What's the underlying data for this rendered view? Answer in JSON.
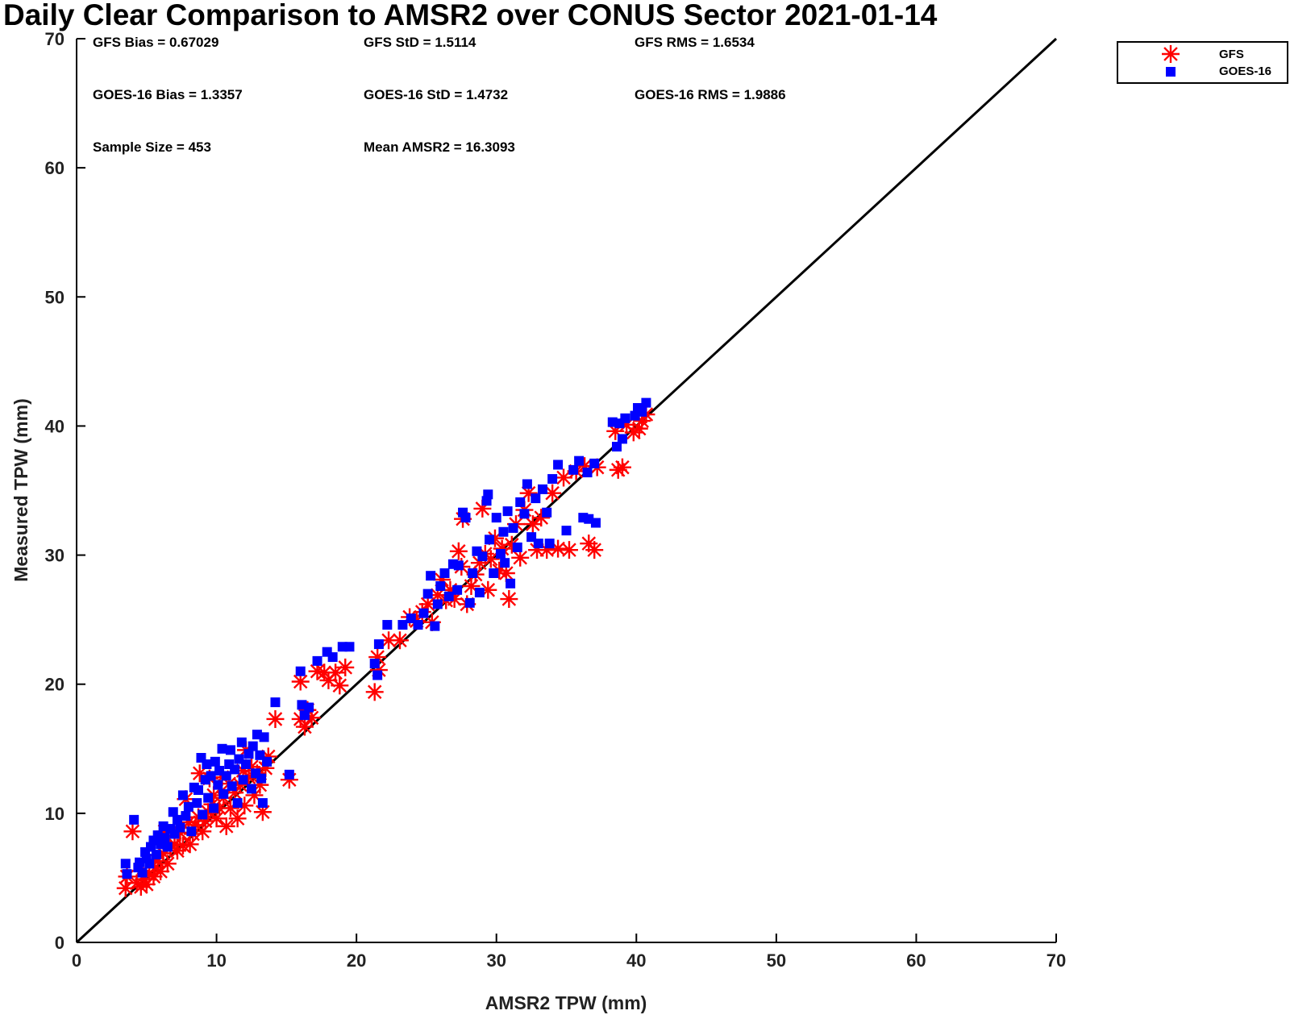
{
  "chart_data": {
    "type": "scatter",
    "title": "Daily Clear Comparison to AMSR2 over CONUS Sector 2021-01-14",
    "xlabel": "AMSR2 TPW (mm)",
    "ylabel": "Measured TPW (mm)",
    "xlim": [
      0,
      70
    ],
    "ylim": [
      0,
      70
    ],
    "xticks": [
      0,
      10,
      20,
      30,
      40,
      50,
      60,
      70
    ],
    "yticks": [
      0,
      10,
      20,
      30,
      40,
      50,
      60,
      70
    ],
    "grid": false,
    "legend_position": "outside-top-right",
    "reference_line": {
      "name": "1:1",
      "color": "#000000",
      "from": [
        0,
        0
      ],
      "to": [
        70,
        70
      ]
    },
    "stats": [
      [
        "GFS Bias = 0.67029",
        "GFS StD = 1.5114",
        "GFS RMS = 1.6534"
      ],
      [
        "GOES-16 Bias = 1.3357",
        "GOES-16 StD = 1.4732",
        "GOES-16 RMS = 1.9886"
      ],
      [
        "Sample Size = 453",
        "Mean AMSR2 = 16.3093"
      ]
    ],
    "series": [
      {
        "name": "GFS",
        "marker": "asterisk",
        "color": "#ff0000",
        "points": [
          [
            3.5,
            4.2
          ],
          [
            3.6,
            5.1
          ],
          [
            4,
            8.6
          ],
          [
            4.3,
            4.6
          ],
          [
            4.6,
            4.3
          ],
          [
            4.8,
            4.9
          ],
          [
            5,
            4.5
          ],
          [
            5.2,
            5.3
          ],
          [
            5.5,
            5.1
          ],
          [
            5.6,
            5.8
          ],
          [
            5.8,
            6.3
          ],
          [
            6,
            5.5
          ],
          [
            6.2,
            6.9
          ],
          [
            6.3,
            8.6
          ],
          [
            6.5,
            6.1
          ],
          [
            6.7,
            7.3
          ],
          [
            7,
            7.6
          ],
          [
            7.2,
            7.1
          ],
          [
            7.4,
            8.5
          ],
          [
            7.6,
            7.5
          ],
          [
            7.8,
            11.1
          ],
          [
            8,
            9.3
          ],
          [
            8.1,
            7.6
          ],
          [
            8.3,
            8.4
          ],
          [
            8.5,
            9.1
          ],
          [
            8.7,
            9.7
          ],
          [
            8.8,
            13.1
          ],
          [
            9,
            8.6
          ],
          [
            9.2,
            9.4
          ],
          [
            9.4,
            10.1
          ],
          [
            9.5,
            12.7
          ],
          [
            9.7,
            10.7
          ],
          [
            9.8,
            11.4
          ],
          [
            10,
            9.6
          ],
          [
            10.2,
            10.4
          ],
          [
            10.4,
            12.8
          ],
          [
            10.5,
            11.2
          ],
          [
            10.7,
            9
          ],
          [
            10.9,
            12.3
          ],
          [
            11,
            10.4
          ],
          [
            11.3,
            11.6
          ],
          [
            11.5,
            9.6
          ],
          [
            11.7,
            12.2
          ],
          [
            11.9,
            13.3
          ],
          [
            12,
            10.6
          ],
          [
            12.1,
            14.9
          ],
          [
            12.3,
            12.8
          ],
          [
            12.5,
            13.6
          ],
          [
            12.7,
            11.4
          ],
          [
            12.9,
            13.1
          ],
          [
            13.1,
            12.2
          ],
          [
            13.3,
            10.1
          ],
          [
            13.5,
            13.5
          ],
          [
            13.7,
            14.4
          ],
          [
            14.2,
            17.3
          ],
          [
            15.2,
            12.6
          ],
          [
            16,
            20.2
          ],
          [
            16,
            17.3
          ],
          [
            16.3,
            16.7
          ],
          [
            16.5,
            18
          ],
          [
            16.8,
            17.4
          ],
          [
            17.2,
            21
          ],
          [
            17.7,
            20.9
          ],
          [
            18,
            20.3
          ],
          [
            18.5,
            20.9
          ],
          [
            18.8,
            19.9
          ],
          [
            19.2,
            21.3
          ],
          [
            21.3,
            19.4
          ],
          [
            21.5,
            22.1
          ],
          [
            21.6,
            21.1
          ],
          [
            22.3,
            23.4
          ],
          [
            23.1,
            23.4
          ],
          [
            23.8,
            25.2
          ],
          [
            24.3,
            24.9
          ],
          [
            24.7,
            25.6
          ],
          [
            25.1,
            26.2
          ],
          [
            25.4,
            24.8
          ],
          [
            25.8,
            26.9
          ],
          [
            26.1,
            28.1
          ],
          [
            26.4,
            26.5
          ],
          [
            26.7,
            27.3
          ],
          [
            27,
            26.6
          ],
          [
            27.3,
            30.3
          ],
          [
            27.5,
            29.1
          ],
          [
            27.6,
            32.8
          ],
          [
            27.9,
            26.2
          ],
          [
            28.2,
            27.6
          ],
          [
            28.5,
            28.5
          ],
          [
            28.8,
            29.4
          ],
          [
            29,
            33.6
          ],
          [
            29.2,
            30.1
          ],
          [
            29.4,
            27.3
          ],
          [
            29.6,
            29.7
          ],
          [
            29.9,
            31.3
          ],
          [
            30.2,
            28.8
          ],
          [
            30.4,
            30.5
          ],
          [
            30.7,
            28.6
          ],
          [
            30.9,
            26.6
          ],
          [
            31.1,
            30.8
          ],
          [
            31.4,
            32.4
          ],
          [
            31.7,
            29.8
          ],
          [
            32,
            33.5
          ],
          [
            32.3,
            34.8
          ],
          [
            32.6,
            32.4
          ],
          [
            32.9,
            30.4
          ],
          [
            33.2,
            32.9
          ],
          [
            33.6,
            30.4
          ],
          [
            34,
            34.8
          ],
          [
            34.4,
            30.5
          ],
          [
            34.8,
            36
          ],
          [
            35.2,
            30.4
          ],
          [
            35.7,
            36.5
          ],
          [
            36.3,
            36.9
          ],
          [
            36.6,
            30.9
          ],
          [
            37,
            30.4
          ],
          [
            37.2,
            36.8
          ],
          [
            38.5,
            39.6
          ],
          [
            38.7,
            36.6
          ],
          [
            39,
            36.8
          ],
          [
            39.3,
            40.1
          ],
          [
            39.8,
            39.5
          ],
          [
            40.2,
            39.8
          ],
          [
            40.4,
            40.4
          ],
          [
            40.7,
            40.9
          ]
        ]
      },
      {
        "name": "GOES-16",
        "marker": "square",
        "color": "#0000ff",
        "points": [
          [
            3.5,
            6.1
          ],
          [
            3.6,
            5.3
          ],
          [
            4.1,
            9.5
          ],
          [
            4.4,
            5.8
          ],
          [
            4.5,
            6.2
          ],
          [
            4.7,
            5.4
          ],
          [
            4.9,
            7
          ],
          [
            5,
            6.5
          ],
          [
            5.2,
            6.1
          ],
          [
            5.3,
            7.4
          ],
          [
            5.5,
            7.9
          ],
          [
            5.7,
            6.8
          ],
          [
            5.8,
            8.3
          ],
          [
            6,
            7.6
          ],
          [
            6.2,
            9
          ],
          [
            6.3,
            8.1
          ],
          [
            6.5,
            7.4
          ],
          [
            6.7,
            8.8
          ],
          [
            6.9,
            10.1
          ],
          [
            7,
            8.4
          ],
          [
            7.2,
            9.5
          ],
          [
            7.4,
            8.9
          ],
          [
            7.6,
            11.4
          ],
          [
            7.8,
            9.8
          ],
          [
            8,
            10.5
          ],
          [
            8.2,
            8.6
          ],
          [
            8.4,
            12
          ],
          [
            8.6,
            10.8
          ],
          [
            8.7,
            11.8
          ],
          [
            8.9,
            14.3
          ],
          [
            9,
            9.9
          ],
          [
            9.2,
            12.6
          ],
          [
            9.3,
            13.8
          ],
          [
            9.4,
            11.2
          ],
          [
            9.6,
            12.9
          ],
          [
            9.8,
            10.4
          ],
          [
            9.9,
            14
          ],
          [
            10.1,
            12.2
          ],
          [
            10.2,
            13.3
          ],
          [
            10.4,
            15
          ],
          [
            10.5,
            11.5
          ],
          [
            10.7,
            12.9
          ],
          [
            10.9,
            13.8
          ],
          [
            11,
            14.9
          ],
          [
            11.1,
            12.1
          ],
          [
            11.3,
            13.4
          ],
          [
            11.5,
            10.8
          ],
          [
            11.6,
            14.2
          ],
          [
            11.8,
            15.5
          ],
          [
            11.9,
            12.6
          ],
          [
            12.1,
            13.8
          ],
          [
            12.3,
            14.6
          ],
          [
            12.5,
            11.9
          ],
          [
            12.6,
            15.2
          ],
          [
            12.8,
            13.1
          ],
          [
            12.9,
            16.1
          ],
          [
            13.1,
            14.5
          ],
          [
            13.2,
            12.7
          ],
          [
            13.3,
            10.8
          ],
          [
            13.4,
            15.9
          ],
          [
            13.6,
            14
          ],
          [
            14.2,
            18.6
          ],
          [
            15.2,
            13
          ],
          [
            16,
            21
          ],
          [
            16.1,
            18.4
          ],
          [
            16.3,
            17.6
          ],
          [
            16.6,
            18.2
          ],
          [
            17.2,
            21.8
          ],
          [
            17.9,
            22.5
          ],
          [
            18.3,
            22.1
          ],
          [
            19,
            22.9
          ],
          [
            19.5,
            22.9
          ],
          [
            21.3,
            21.6
          ],
          [
            21.5,
            20.7
          ],
          [
            21.6,
            23.1
          ],
          [
            22.2,
            24.6
          ],
          [
            23.3,
            24.6
          ],
          [
            23.9,
            25.1
          ],
          [
            24.4,
            24.6
          ],
          [
            24.8,
            25.5
          ],
          [
            25.1,
            27
          ],
          [
            25.3,
            28.4
          ],
          [
            25.6,
            24.5
          ],
          [
            25.8,
            26.2
          ],
          [
            26,
            27.6
          ],
          [
            26.3,
            28.6
          ],
          [
            26.6,
            26.8
          ],
          [
            26.9,
            29.3
          ],
          [
            27.2,
            27.3
          ],
          [
            27.3,
            29.2
          ],
          [
            27.6,
            33.3
          ],
          [
            27.8,
            32.9
          ],
          [
            28.1,
            26.3
          ],
          [
            28.3,
            28.6
          ],
          [
            28.6,
            30.3
          ],
          [
            28.8,
            27.1
          ],
          [
            29,
            29.9
          ],
          [
            29.3,
            34.2
          ],
          [
            29.4,
            34.7
          ],
          [
            29.5,
            31.2
          ],
          [
            29.8,
            28.6
          ],
          [
            30,
            32.9
          ],
          [
            30.3,
            30.1
          ],
          [
            30.5,
            31.8
          ],
          [
            30.6,
            29.4
          ],
          [
            30.8,
            33.4
          ],
          [
            31,
            27.8
          ],
          [
            31.2,
            32.1
          ],
          [
            31.5,
            30.6
          ],
          [
            31.7,
            34.1
          ],
          [
            32,
            33.2
          ],
          [
            32.2,
            35.5
          ],
          [
            32.5,
            31.4
          ],
          [
            32.8,
            34.4
          ],
          [
            33,
            30.9
          ],
          [
            33.3,
            35.1
          ],
          [
            33.6,
            33.3
          ],
          [
            33.8,
            30.9
          ],
          [
            34,
            35.9
          ],
          [
            34.4,
            37
          ],
          [
            35,
            31.9
          ],
          [
            35.5,
            36.6
          ],
          [
            35.9,
            37.3
          ],
          [
            36.2,
            32.9
          ],
          [
            36.5,
            36.4
          ],
          [
            36.6,
            32.8
          ],
          [
            37.1,
            32.5
          ],
          [
            37,
            37.1
          ],
          [
            38.3,
            40.3
          ],
          [
            38.6,
            38.4
          ],
          [
            38.8,
            40.2
          ],
          [
            39,
            39
          ],
          [
            39.2,
            40.6
          ],
          [
            39.9,
            40.8
          ],
          [
            40.1,
            41.4
          ],
          [
            40.4,
            41.1
          ],
          [
            40.7,
            41.8
          ]
        ]
      }
    ]
  }
}
